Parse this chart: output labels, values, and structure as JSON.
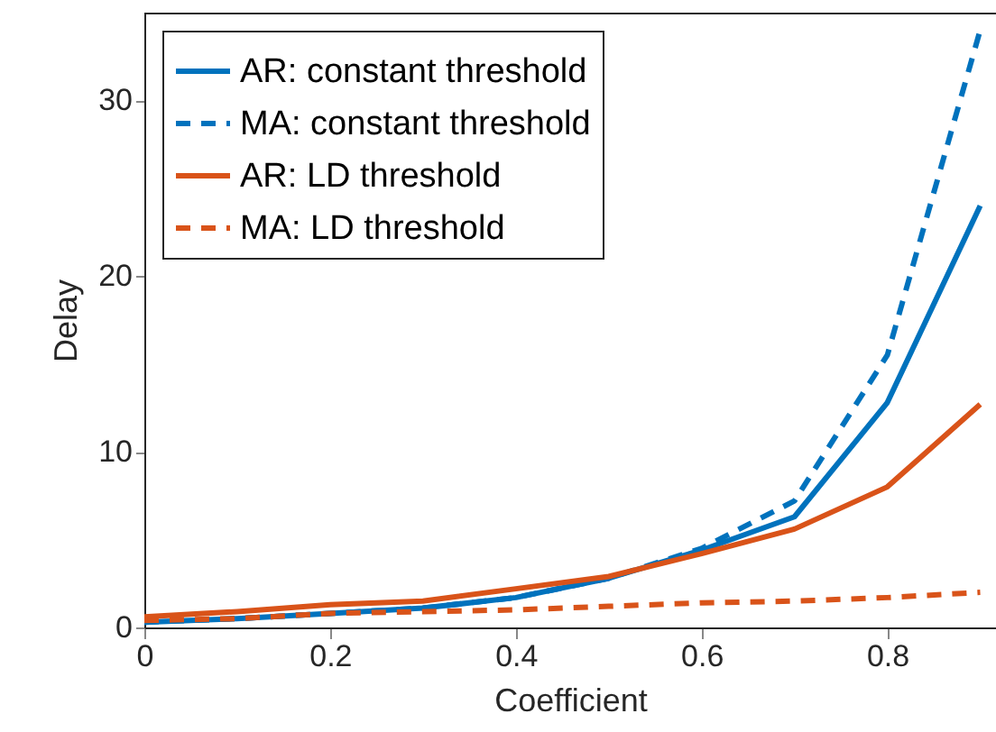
{
  "chart_data": {
    "type": "line",
    "xlabel": "Coefficient",
    "ylabel": "Delay",
    "x": [
      0,
      0.1,
      0.2,
      0.3,
      0.4,
      0.5,
      0.6,
      0.7,
      0.8,
      0.9
    ],
    "series": [
      {
        "name": "AR: constant threshold",
        "color": "#0072bd",
        "line_style": "solid",
        "values": [
          0.3,
          0.5,
          0.8,
          1.1,
          1.7,
          2.8,
          4.4,
          6.3,
          12.8,
          24
        ]
      },
      {
        "name": "MA: constant threshold",
        "color": "#0072bd",
        "line_style": "dashed",
        "values": [
          0.3,
          0.5,
          0.8,
          1.1,
          1.7,
          2.8,
          4.5,
          7.2,
          15.5,
          34
        ]
      },
      {
        "name": "AR: LD threshold",
        "color": "#d95319",
        "line_style": "solid",
        "values": [
          0.6,
          0.9,
          1.3,
          1.5,
          2.2,
          2.9,
          4.2,
          5.6,
          8,
          12.7
        ]
      },
      {
        "name": "MA: LD threshold",
        "color": "#d95319",
        "line_style": "dashed",
        "values": [
          0.4,
          0.5,
          0.8,
          0.9,
          1.0,
          1.2,
          1.4,
          1.5,
          1.7,
          2.0
        ]
      }
    ],
    "xlim": [
      0,
      0.917
    ],
    "ylim": [
      0,
      35
    ],
    "xticks": [
      0,
      0.2,
      0.4,
      0.6,
      0.8
    ],
    "yticks": [
      0,
      10,
      20,
      30
    ],
    "grid": false,
    "legend": "top left",
    "marker": "none"
  }
}
